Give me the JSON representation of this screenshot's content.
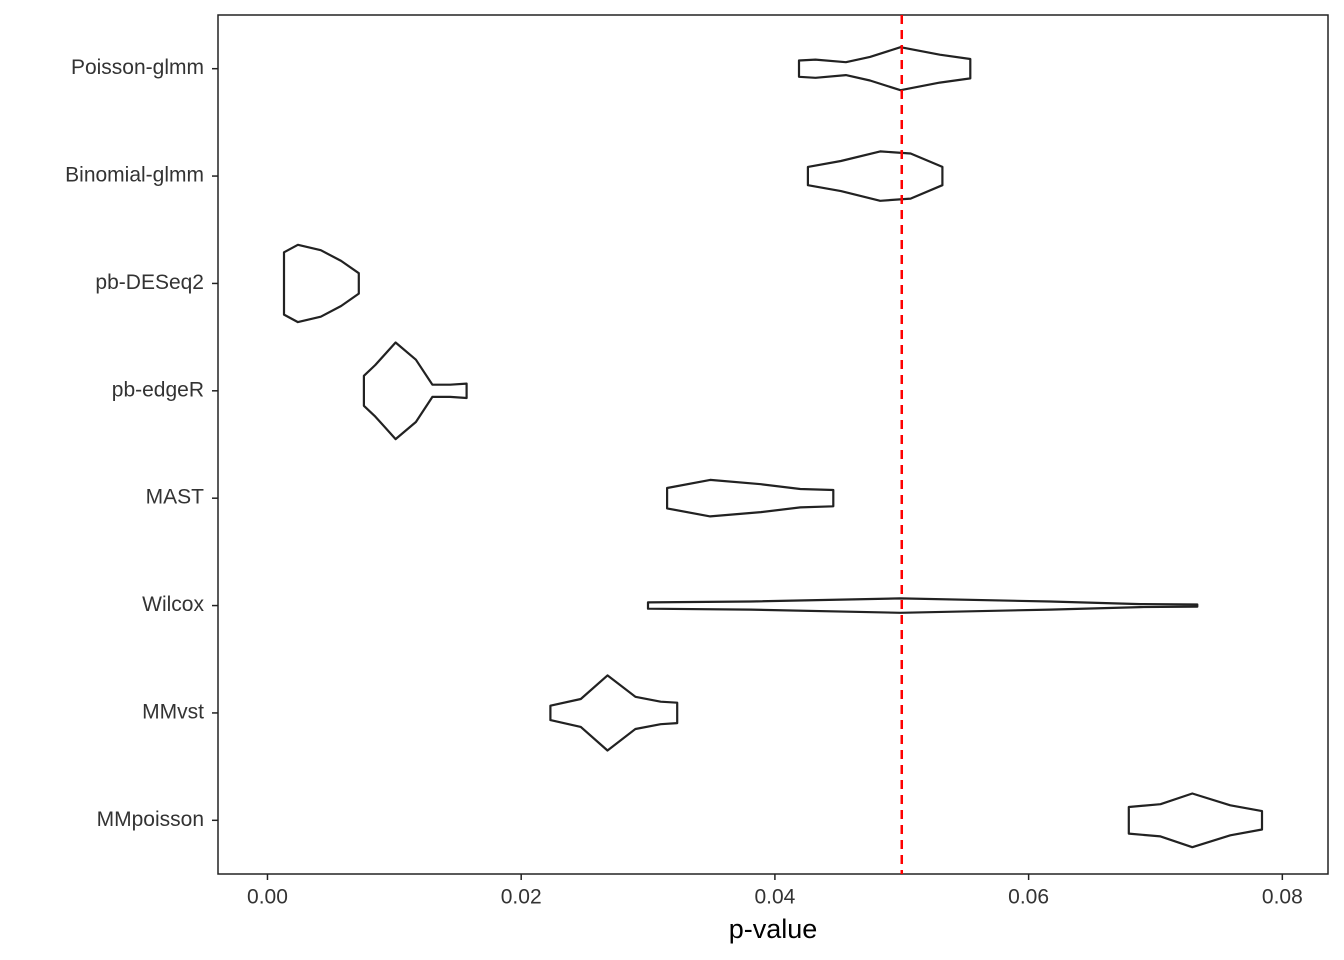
{
  "chart_data": {
    "type": "violin",
    "orientation": "horizontal",
    "xlabel": "p-value",
    "categories": [
      "Poisson-glmm",
      "Binomial-glmm",
      "pb-DESeq2",
      "pb-edgeR",
      "MAST",
      "Wilcox",
      "MMvst",
      "MMpoisson"
    ],
    "series": [
      {
        "name": "Poisson-glmm",
        "values": [
          0.0419,
          0.0432,
          0.0456,
          0.0475,
          0.0499,
          0.053,
          0.0554
        ],
        "widths": [
          0.076,
          0.085,
          0.06,
          0.11,
          0.2,
          0.13,
          0.09
        ]
      },
      {
        "name": "Binomial-glmm",
        "values": [
          0.0426,
          0.0452,
          0.0483,
          0.0507,
          0.0532
        ],
        "widths": [
          0.085,
          0.14,
          0.23,
          0.21,
          0.085
        ]
      },
      {
        "name": "pb-DESeq2",
        "values": [
          0.0013,
          0.0024,
          0.0042,
          0.0058,
          0.0072
        ],
        "widths": [
          0.29,
          0.36,
          0.31,
          0.21,
          0.095
        ]
      },
      {
        "name": "pb-edgeR",
        "values": [
          0.0076,
          0.0085,
          0.0101,
          0.0117,
          0.013,
          0.0144,
          0.0157
        ],
        "widths": [
          0.14,
          0.24,
          0.45,
          0.29,
          0.057,
          0.057,
          0.067
        ]
      },
      {
        "name": "MAST",
        "values": [
          0.0315,
          0.0349,
          0.0389,
          0.042,
          0.0446
        ],
        "widths": [
          0.095,
          0.17,
          0.13,
          0.086,
          0.076
        ]
      },
      {
        "name": "Wilcox",
        "values": [
          0.03,
          0.0381,
          0.0499,
          0.0617,
          0.0688,
          0.0733
        ],
        "widths": [
          0.029,
          0.038,
          0.067,
          0.038,
          0.014,
          0.01
        ]
      },
      {
        "name": "MMvst",
        "values": [
          0.0223,
          0.0247,
          0.0268,
          0.029,
          0.031,
          0.0323
        ],
        "widths": [
          0.067,
          0.13,
          0.35,
          0.15,
          0.105,
          0.095
        ]
      },
      {
        "name": "MMpoisson",
        "values": [
          0.0679,
          0.0704,
          0.0729,
          0.0759,
          0.0784
        ],
        "widths": [
          0.124,
          0.15,
          0.25,
          0.14,
          0.086
        ]
      }
    ],
    "color": "#222222",
    "xlim": [
      -0.0039,
      0.0836
    ],
    "xticks": [
      {
        "value": 0,
        "label": "0.00"
      },
      {
        "value": 0.02,
        "label": "0.02"
      },
      {
        "value": 0.04,
        "label": "0.04"
      },
      {
        "value": 0.06,
        "label": "0.06"
      },
      {
        "value": 0.08,
        "label": "0.08"
      }
    ],
    "reference_line": {
      "value": 0.05,
      "color": "#ff0000",
      "style": "dashed"
    },
    "grid": false
  }
}
